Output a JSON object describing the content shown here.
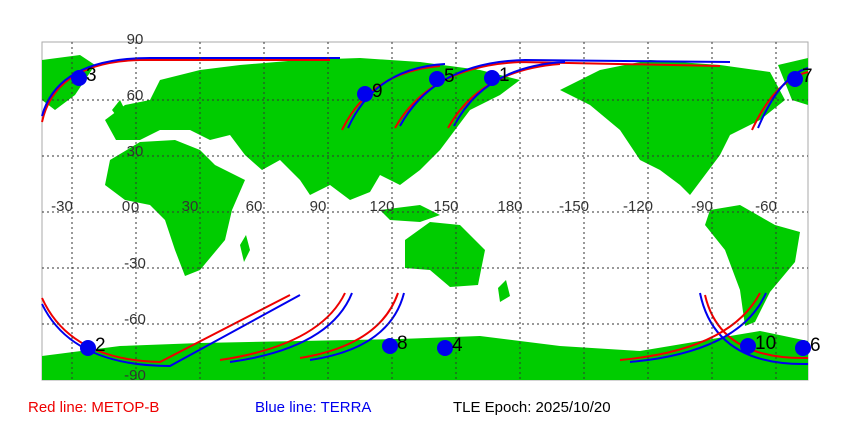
{
  "map": {
    "lon_labels": [
      "-30",
      "0",
      "30",
      "60",
      "90",
      "120",
      "150",
      "180",
      "-150",
      "-120",
      "-90",
      "-60"
    ],
    "lat_labels": [
      "90",
      "60",
      "30",
      "0",
      "-30",
      "-60",
      "-90"
    ],
    "satellites": [
      "3",
      "9",
      "5",
      "1",
      "7",
      "2",
      "8",
      "4",
      "10",
      "6"
    ]
  },
  "legend": {
    "red": "Red line: METOP-B",
    "blue": "Blue line: TERRA",
    "epoch": "TLE Epoch: 2025/10/20"
  }
}
